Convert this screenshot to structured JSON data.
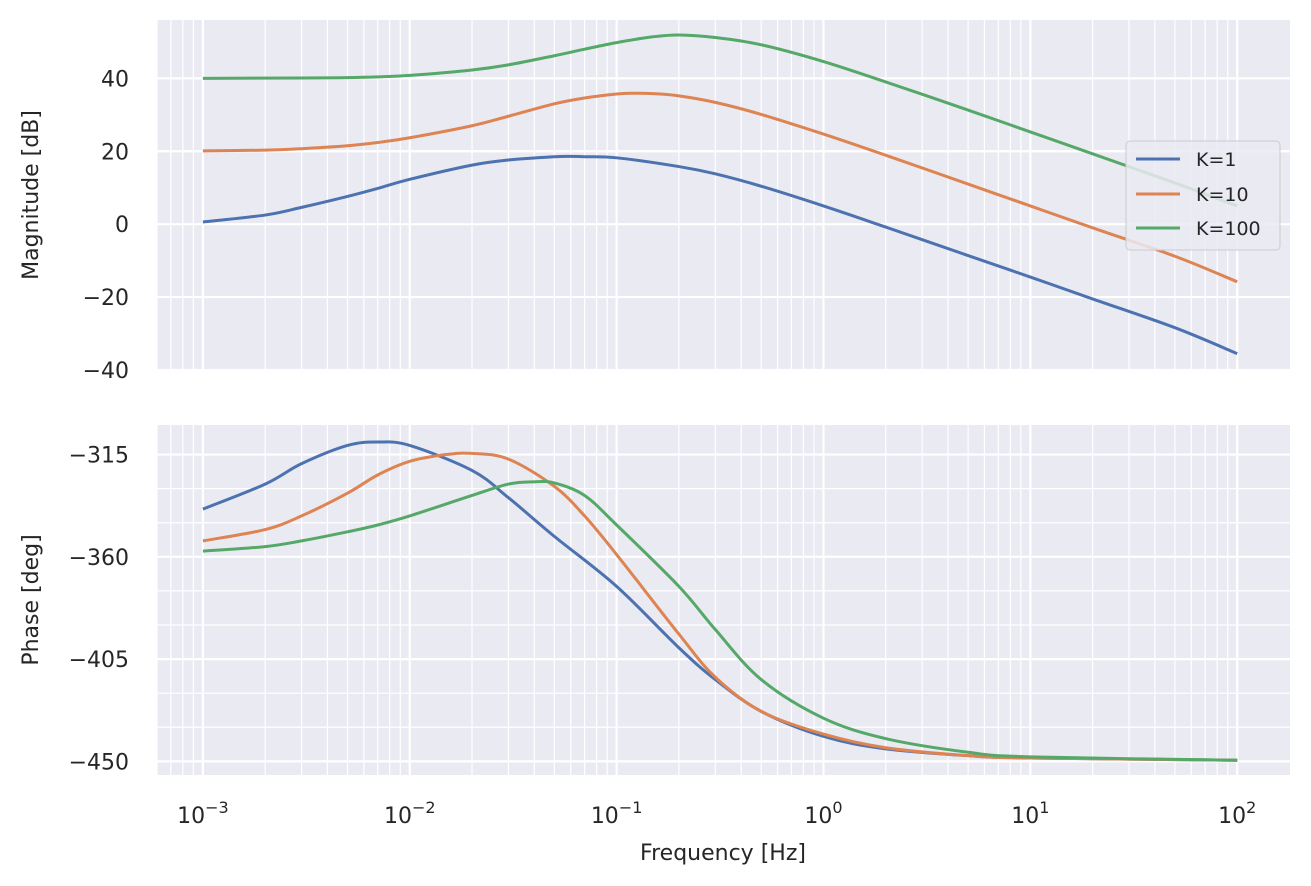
{
  "chart_data": [
    {
      "type": "line",
      "panel": "magnitude",
      "xlabel": "",
      "ylabel": "Magnitude [dB]",
      "xscale": "log",
      "xlim": [
        0.0006,
        180
      ],
      "ylim": [
        -40,
        56
      ],
      "yticks": [
        40,
        20,
        0,
        -20,
        -40
      ],
      "ytick_labels": [
        "40",
        "20",
        "0",
        "−20",
        "−40"
      ],
      "grid": true,
      "legend_position": "right",
      "series": [
        {
          "name": "K=1",
          "color": "#4c72b0",
          "x": [
            0.001,
            0.002,
            0.003,
            0.005,
            0.007,
            0.01,
            0.02,
            0.03,
            0.05,
            0.06,
            0.07,
            0.1,
            0.2,
            0.3,
            0.5,
            1,
            2,
            5,
            10,
            20,
            50,
            100
          ],
          "y": [
            0.6,
            2.5,
            4.6,
            7.6,
            9.8,
            12.3,
            16.2,
            17.6,
            18.5,
            18.6,
            18.5,
            18.2,
            15.8,
            13.8,
            10.4,
            5.0,
            -0.8,
            -8.6,
            -14.5,
            -20.5,
            -28.4,
            -35.5
          ]
        },
        {
          "name": "K=10",
          "color": "#dd8452",
          "x": [
            0.001,
            0.002,
            0.003,
            0.005,
            0.007,
            0.01,
            0.02,
            0.03,
            0.05,
            0.07,
            0.1,
            0.12,
            0.15,
            0.2,
            0.3,
            0.5,
            1,
            2,
            5,
            10,
            20,
            50,
            100
          ],
          "y": [
            20.1,
            20.3,
            20.7,
            21.5,
            22.4,
            23.7,
            27.0,
            29.6,
            33.0,
            34.6,
            35.7,
            35.9,
            35.8,
            35.2,
            33.4,
            30.1,
            24.7,
            18.9,
            11.0,
            5.0,
            -1.0,
            -8.8,
            -15.8
          ]
        },
        {
          "name": "K=100",
          "color": "#55a868",
          "x": [
            0.001,
            0.003,
            0.005,
            0.007,
            0.01,
            0.02,
            0.03,
            0.05,
            0.07,
            0.1,
            0.15,
            0.2,
            0.3,
            0.5,
            1,
            2,
            5,
            10,
            20,
            50,
            100
          ],
          "y": [
            40.0,
            40.1,
            40.2,
            40.4,
            40.8,
            42.3,
            43.7,
            46.2,
            48.0,
            49.8,
            51.4,
            51.9,
            51.2,
            49.2,
            44.6,
            39.0,
            31.3,
            25.3,
            19.3,
            11.3,
            5.0
          ]
        }
      ],
      "legend": [
        "K=1",
        "K=10",
        "K=100"
      ]
    },
    {
      "type": "line",
      "panel": "phase",
      "xlabel": "Frequency [Hz]",
      "ylabel": "Phase [deg]",
      "xscale": "log",
      "xlim": [
        0.0006,
        180
      ],
      "ylim": [
        -456,
        -302
      ],
      "yticks": [
        -315,
        -360,
        -405,
        -450
      ],
      "ytick_labels": [
        "−315",
        "−360",
        "−405",
        "−450"
      ],
      "xticks": [
        0.001,
        0.01,
        0.1,
        1,
        10,
        100
      ],
      "xtick_labels": [
        {
          "base": "10",
          "exp": "−3"
        },
        {
          "base": "10",
          "exp": "−2"
        },
        {
          "base": "10",
          "exp": "−1"
        },
        {
          "base": "10",
          "exp": "0"
        },
        {
          "base": "10",
          "exp": "1"
        },
        {
          "base": "10",
          "exp": "2"
        }
      ],
      "grid": true,
      "series": [
        {
          "name": "K=1",
          "color": "#4c72b0",
          "x": [
            0.001,
            0.002,
            0.003,
            0.005,
            0.007,
            0.01,
            0.02,
            0.03,
            0.05,
            0.1,
            0.2,
            0.3,
            0.5,
            1,
            2,
            5,
            10,
            100
          ],
          "y": [
            -339,
            -328,
            -319,
            -311,
            -309.5,
            -311,
            -322,
            -334,
            -351,
            -373,
            -400,
            -414,
            -428,
            -439,
            -444.5,
            -447.5,
            -448.5,
            -449.5
          ]
        },
        {
          "name": "K=10",
          "color": "#dd8452",
          "x": [
            0.001,
            0.002,
            0.003,
            0.005,
            0.007,
            0.01,
            0.015,
            0.02,
            0.03,
            0.05,
            0.07,
            0.1,
            0.2,
            0.3,
            0.5,
            1,
            2,
            5,
            10,
            100
          ],
          "y": [
            -353,
            -348,
            -342,
            -332,
            -324,
            -318,
            -315,
            -314.5,
            -317,
            -329,
            -342,
            -359,
            -394,
            -413,
            -428,
            -438,
            -444,
            -447.5,
            -448.5,
            -449.5
          ]
        },
        {
          "name": "K=100",
          "color": "#55a868",
          "x": [
            0.001,
            0.002,
            0.003,
            0.005,
            0.007,
            0.01,
            0.02,
            0.03,
            0.04,
            0.05,
            0.07,
            0.1,
            0.2,
            0.3,
            0.5,
            1,
            2,
            5,
            10,
            100
          ],
          "y": [
            -357.5,
            -355.5,
            -353,
            -349,
            -346,
            -342,
            -333,
            -328,
            -327,
            -327.5,
            -333,
            -346,
            -373,
            -392,
            -414,
            -431,
            -440,
            -446,
            -448,
            -449.5
          ]
        }
      ]
    }
  ]
}
